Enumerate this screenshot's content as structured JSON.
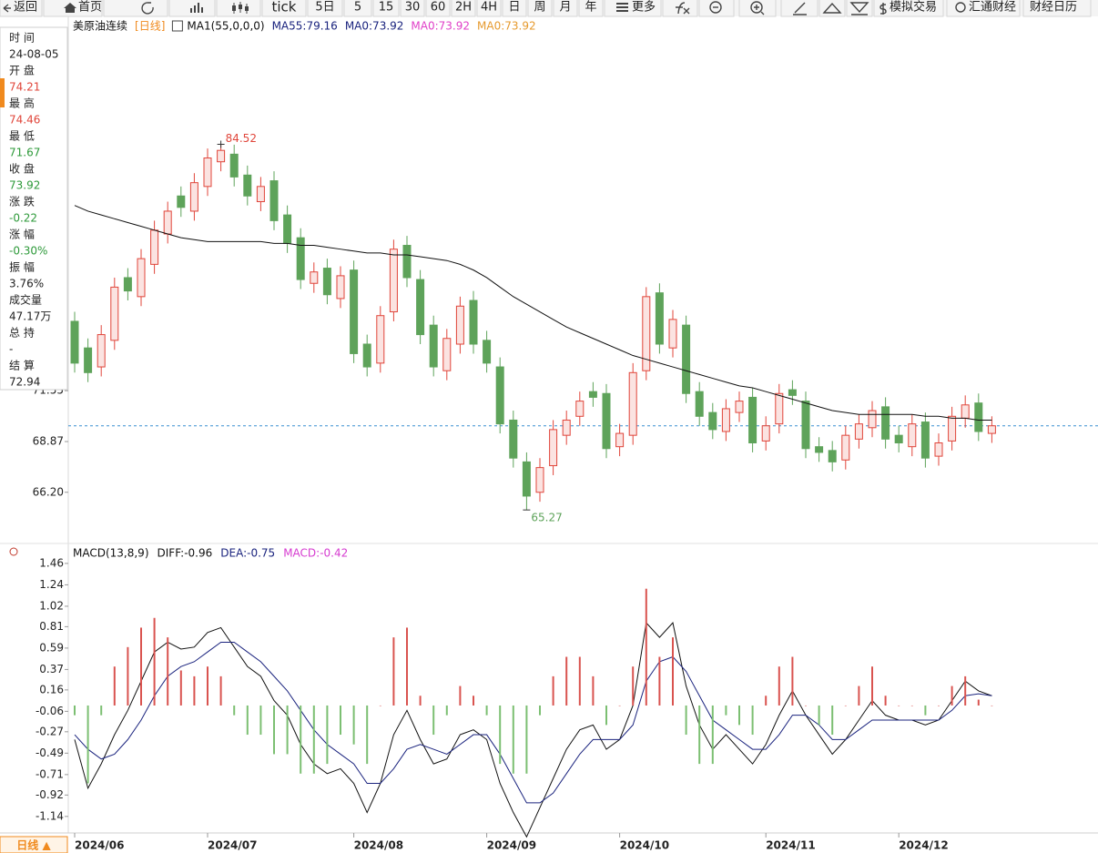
{
  "toolbar": {
    "items": [
      "返回",
      "首页",
      "tick",
      "5日",
      "5",
      "15",
      "30",
      "60",
      "2H",
      "4H",
      "日",
      "周",
      "月",
      "年",
      "更多",
      "模拟交易",
      "汇通财经",
      "财经日历"
    ]
  },
  "info_panel": {
    "rows": [
      {
        "label": "时 间",
        "value": "24-08-05",
        "color": "#222222"
      },
      {
        "label": "开 盘",
        "value": "74.21",
        "color": "#e0453a"
      },
      {
        "label": "最 高",
        "value": "74.46",
        "color": "#e0453a"
      },
      {
        "label": "最 低",
        "value": "71.67",
        "color": "#2e9a3a"
      },
      {
        "label": "收 盘",
        "value": "73.92",
        "color": "#2e9a3a"
      },
      {
        "label": "涨 跌",
        "value": "-0.22",
        "color": "#2e9a3a"
      },
      {
        "label": "涨 幅",
        "value": "-0.30%",
        "color": "#2e9a3a"
      },
      {
        "label": "振 幅",
        "value": "3.76%",
        "color": "#222222"
      },
      {
        "label": "成交量",
        "value": "47.17万",
        "color": "#222222"
      },
      {
        "label": "总 持",
        "value": "-",
        "color": "#222222"
      },
      {
        "label": "结 算",
        "value": "72.94",
        "color": "#222222"
      }
    ]
  },
  "footer": {
    "period_button": "日线 ▲"
  },
  "chart_data": [
    {
      "type": "candlestick",
      "title": "美原油连续",
      "period": "[日线]",
      "indicator": "MA1(55,0,0,0)",
      "up_color": "#e0453a",
      "down_color": "#5ea35a",
      "mark_extremes": true,
      "open": [
        75.2,
        73.8,
        72.8,
        74.2,
        77.5,
        76.5,
        78.2,
        79.8,
        81.8,
        81.0,
        82.3,
        83.6,
        84.0,
        82.9,
        81.5,
        82.6,
        80.8,
        79.6,
        77.2,
        78.0,
        76.4,
        77.9,
        74.0,
        73.0,
        75.7,
        79.2,
        77.4,
        75.0,
        72.6,
        74.0,
        76.3,
        74.2,
        72.8,
        70.0,
        67.8,
        66.2,
        67.6,
        69.2,
        70.2,
        71.5,
        71.4,
        68.6,
        69.2,
        72.6,
        76.7,
        73.8,
        75.0,
        71.5,
        70.4,
        69.4,
        70.4,
        71.2,
        68.9,
        69.8,
        71.6,
        71.0,
        68.6,
        68.4,
        67.9,
        69.0,
        69.6,
        70.7,
        69.2,
        68.6,
        69.9,
        68.1,
        68.9,
        70.1,
        70.9,
        69.3
      ],
      "high": [
        75.7,
        74.3,
        75.0,
        77.5,
        78.0,
        79.0,
        80.5,
        81.5,
        82.3,
        83.0,
        84.3,
        84.52,
        84.5,
        83.4,
        82.8,
        83.1,
        81.3,
        80.1,
        78.3,
        78.5,
        78.1,
        78.4,
        74.5,
        76.0,
        79.5,
        79.7,
        77.9,
        75.5,
        74.8,
        76.5,
        76.8,
        74.7,
        73.3,
        70.5,
        68.3,
        68.0,
        70.0,
        70.5,
        71.5,
        72.0,
        71.9,
        69.8,
        73.0,
        77.0,
        77.2,
        75.8,
        75.5,
        72.0,
        70.9,
        71.1,
        71.5,
        71.7,
        70.2,
        71.9,
        72.1,
        71.5,
        69.1,
        68.9,
        69.7,
        70.3,
        71.0,
        71.2,
        69.7,
        70.3,
        70.4,
        69.3,
        70.7,
        71.3,
        71.4,
        70.2
      ],
      "low": [
        72.5,
        72.0,
        72.3,
        73.7,
        76.3,
        76.0,
        77.7,
        79.3,
        80.7,
        80.5,
        81.8,
        83.1,
        82.3,
        81.3,
        81.0,
        80.0,
        78.8,
        76.9,
        76.7,
        76.1,
        75.9,
        73.0,
        72.3,
        72.5,
        75.2,
        77.0,
        74.0,
        72.3,
        72.1,
        73.5,
        73.5,
        72.5,
        69.3,
        67.5,
        65.27,
        65.7,
        67.1,
        68.7,
        69.7,
        70.7,
        68.0,
        68.1,
        68.7,
        72.1,
        73.5,
        73.3,
        70.9,
        69.7,
        69.0,
        68.9,
        69.9,
        68.3,
        68.4,
        69.3,
        70.8,
        68.0,
        67.8,
        67.3,
        67.4,
        68.5,
        69.1,
        68.5,
        68.3,
        68.1,
        67.5,
        67.6,
        68.4,
        69.6,
        68.9,
        68.8
      ],
      "close": [
        73.0,
        72.5,
        74.5,
        77.0,
        76.8,
        78.5,
        80.0,
        81.0,
        81.2,
        82.5,
        83.8,
        84.2,
        82.8,
        81.8,
        82.3,
        80.5,
        79.3,
        77.4,
        77.8,
        76.6,
        77.6,
        73.5,
        72.8,
        75.5,
        79.0,
        77.5,
        74.5,
        72.8,
        74.3,
        76.0,
        74.0,
        73.0,
        69.8,
        68.0,
        66.0,
        67.5,
        69.5,
        70.0,
        71.0,
        71.2,
        68.5,
        69.3,
        72.5,
        76.5,
        74.0,
        75.3,
        71.4,
        70.2,
        69.5,
        70.6,
        71.0,
        68.8,
        69.7,
        71.4,
        71.3,
        68.5,
        68.3,
        67.8,
        69.2,
        69.8,
        70.5,
        69.0,
        68.8,
        69.8,
        68.0,
        68.8,
        70.2,
        70.8,
        69.4,
        69.7
      ],
      "series": [
        {
          "name": "MA55:79.16",
          "color": "#111111",
          "legend_color": "#1a237e",
          "values": [
            81.3,
            81.0,
            80.8,
            80.6,
            80.4,
            80.2,
            80.0,
            79.8,
            79.6,
            79.5,
            79.4,
            79.4,
            79.4,
            79.4,
            79.4,
            79.3,
            79.3,
            79.2,
            79.2,
            79.1,
            79.0,
            78.9,
            78.8,
            78.8,
            78.7,
            78.7,
            78.6,
            78.5,
            78.4,
            78.2,
            77.9,
            77.5,
            77.0,
            76.5,
            76.1,
            75.7,
            75.3,
            74.9,
            74.6,
            74.3,
            74.0,
            73.7,
            73.4,
            73.2,
            73.0,
            72.8,
            72.6,
            72.4,
            72.2,
            72.0,
            71.8,
            71.7,
            71.5,
            71.3,
            71.1,
            70.9,
            70.7,
            70.5,
            70.4,
            70.3,
            70.3,
            70.3,
            70.3,
            70.3,
            70.2,
            70.2,
            70.1,
            70.1,
            70.0,
            70.0
          ]
        }
      ],
      "legend_extra": [
        {
          "text": "MA0:73.92",
          "color": "#1a237e"
        },
        {
          "text": "MA0:73.92",
          "color": "#e040c8"
        },
        {
          "text": "MA0:73.92",
          "color": "#e69a2e"
        }
      ],
      "last_line_color": "#3a8fd1",
      "ylim": [
        63.6,
        90.2
      ],
      "yticks": [
        {
          "value": 66.2,
          "label": "66.20"
        },
        68.87,
        71.55
      ]
    },
    {
      "type": "macd",
      "title": "MACD(13,8,9)",
      "categories": [
        "2024/06",
        null,
        null,
        null,
        null,
        null,
        null,
        null,
        null,
        null,
        "2024/07",
        null,
        null,
        null,
        null,
        null,
        null,
        null,
        null,
        null,
        null,
        "2024/08",
        null,
        null,
        null,
        null,
        null,
        null,
        null,
        null,
        null,
        "2024/09",
        null,
        null,
        null,
        null,
        null,
        null,
        null,
        null,
        null,
        "2024/10",
        null,
        null,
        null,
        null,
        null,
        null,
        null,
        null,
        null,
        null,
        "2024/11",
        null,
        null,
        null,
        null,
        null,
        null,
        null,
        null,
        null,
        "2024/12",
        null,
        null,
        null,
        null,
        null,
        null,
        null
      ],
      "series": [
        {
          "name": "DIFF:-0.96",
          "color": "#111111",
          "values": [
            -0.35,
            -0.85,
            -0.6,
            -0.3,
            -0.05,
            0.25,
            0.55,
            0.65,
            0.58,
            0.6,
            0.75,
            0.8,
            0.6,
            0.4,
            0.3,
            0.05,
            -0.1,
            -0.4,
            -0.6,
            -0.7,
            -0.65,
            -0.8,
            -1.1,
            -0.8,
            -0.3,
            -0.05,
            -0.35,
            -0.6,
            -0.55,
            -0.3,
            -0.25,
            -0.35,
            -0.8,
            -1.1,
            -1.35,
            -1.05,
            -0.75,
            -0.45,
            -0.25,
            -0.2,
            -0.45,
            -0.35,
            0.0,
            0.85,
            0.7,
            0.85,
            0.2,
            -0.2,
            -0.45,
            -0.3,
            -0.45,
            -0.6,
            -0.4,
            -0.1,
            0.15,
            -0.1,
            -0.3,
            -0.5,
            -0.35,
            -0.15,
            0.05,
            -0.1,
            -0.15,
            -0.15,
            -0.2,
            -0.15,
            0.05,
            0.25,
            0.15,
            0.1
          ]
        },
        {
          "name": "DEA:-0.75",
          "color": "#1a237e",
          "values": [
            -0.3,
            -0.45,
            -0.55,
            -0.5,
            -0.35,
            -0.15,
            0.1,
            0.3,
            0.4,
            0.45,
            0.55,
            0.65,
            0.65,
            0.55,
            0.45,
            0.3,
            0.15,
            -0.05,
            -0.25,
            -0.4,
            -0.5,
            -0.6,
            -0.8,
            -0.8,
            -0.65,
            -0.45,
            -0.4,
            -0.45,
            -0.5,
            -0.4,
            -0.3,
            -0.3,
            -0.5,
            -0.75,
            -1.0,
            -1.0,
            -0.9,
            -0.7,
            -0.5,
            -0.35,
            -0.35,
            -0.35,
            -0.2,
            0.25,
            0.45,
            0.5,
            0.35,
            0.1,
            -0.15,
            -0.25,
            -0.35,
            -0.45,
            -0.45,
            -0.3,
            -0.1,
            -0.1,
            -0.2,
            -0.35,
            -0.35,
            -0.25,
            -0.15,
            -0.15,
            -0.15,
            -0.15,
            -0.15,
            -0.15,
            -0.05,
            0.1,
            0.12,
            0.1
          ]
        },
        {
          "name": "MACD:-0.42",
          "color": "#d63bd0",
          "bars": true,
          "up_color": "#d9534f",
          "down_color": "#7cbf72",
          "values": [
            -0.1,
            -0.8,
            -0.1,
            0.4,
            0.6,
            0.8,
            0.9,
            0.7,
            0.36,
            0.3,
            0.4,
            0.3,
            -0.1,
            -0.3,
            -0.3,
            -0.5,
            -0.5,
            -0.7,
            -0.7,
            -0.6,
            -0.3,
            -0.4,
            -0.6,
            0.0,
            0.7,
            0.8,
            0.1,
            -0.3,
            -0.1,
            0.2,
            0.1,
            -0.1,
            -0.6,
            -0.7,
            -0.7,
            -0.1,
            0.3,
            0.5,
            0.5,
            0.3,
            -0.2,
            0.0,
            0.4,
            1.2,
            0.5,
            0.7,
            -0.3,
            -0.6,
            -0.6,
            -0.1,
            -0.2,
            -0.3,
            0.1,
            0.4,
            0.5,
            0.0,
            -0.2,
            -0.3,
            0.0,
            0.2,
            0.4,
            0.1,
            0.0,
            0.0,
            -0.1,
            0.0,
            0.2,
            0.3,
            0.06,
            0.0
          ]
        }
      ],
      "ylim": [
        -1.31,
        1.59
      ],
      "yticks": [
        1.46,
        1.24,
        1.02,
        0.81,
        0.59,
        0.37,
        0.16,
        -0.06,
        -0.27,
        -0.49,
        -0.71,
        -0.92,
        -1.14
      ]
    }
  ]
}
